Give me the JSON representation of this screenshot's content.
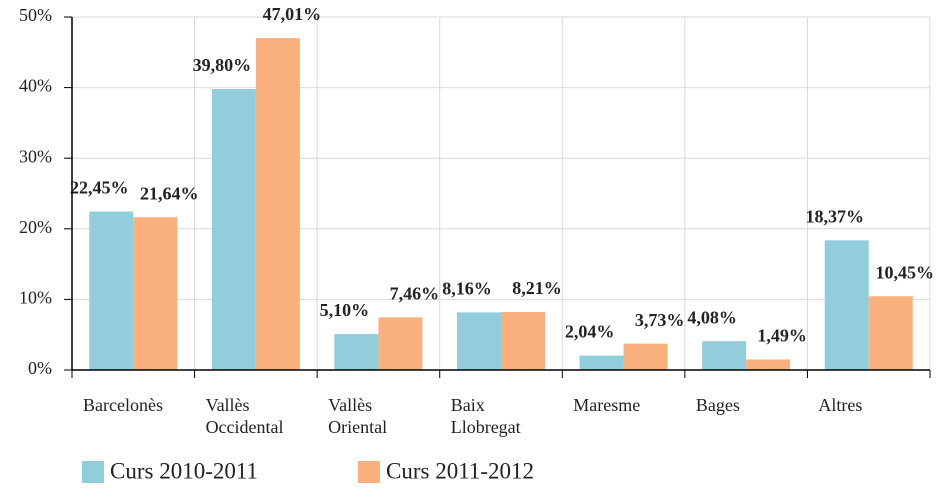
{
  "chart_data": {
    "type": "bar",
    "categories": [
      "Barcelonès",
      "Vallès Occidental",
      "Vallès Oriental",
      "Baix Llobregat",
      "Maresme",
      "Bages",
      "Altres"
    ],
    "series": [
      {
        "name": "Curs 2010-2011",
        "color": "#92cddc",
        "values": [
          22.45,
          39.8,
          5.1,
          8.16,
          2.04,
          4.08,
          18.37
        ],
        "value_labels": [
          "22,45%",
          "39,80%",
          "5,10%",
          "8,16%",
          "2,04%",
          "4,08%",
          "18,37%"
        ]
      },
      {
        "name": "Curs 2011-2012",
        "color": "#fab07c",
        "values": [
          21.64,
          47.01,
          7.46,
          8.21,
          3.73,
          1.49,
          10.45
        ],
        "value_labels": [
          "21,64%",
          "47,01%",
          "7,46%",
          "8,21%",
          "3,73%",
          "1,49%",
          "10,45%"
        ]
      }
    ],
    "ylim": [
      0,
      50
    ],
    "yticks": [
      {
        "value": 0,
        "label": "0%"
      },
      {
        "value": 10,
        "label": "10%"
      },
      {
        "value": 20,
        "label": "20%"
      },
      {
        "value": 30,
        "label": "30%"
      },
      {
        "value": 40,
        "label": "40%"
      },
      {
        "value": 50,
        "label": "50%"
      }
    ],
    "grid": true,
    "legend": "bottom"
  }
}
